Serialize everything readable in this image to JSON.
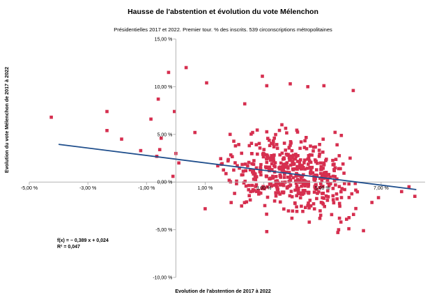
{
  "chart_data": {
    "type": "scatter",
    "title": "Hausse de l'abstention et évolution du vote Mélenchon",
    "subtitle": "Présidentielles 2017 et 2022. Premier tour. % des inscrits. 539 circonscriptions métropolitaines",
    "xlabel": "Evolution de l'abstention de 2017 à 2022",
    "ylabel": "Evolution du vote Mélenchon de 2017 à 2022",
    "xlim": [
      -0.05,
      0.085
    ],
    "ylim": [
      -0.1,
      0.15
    ],
    "x_ticks": [
      -0.05,
      -0.03,
      -0.01,
      0.01,
      0.03,
      0.05,
      0.07
    ],
    "x_tick_labels": [
      "-5,00 %",
      "-3,00 %",
      "-1,00 %",
      "1,00 %",
      "3,00 %",
      "5,00 %",
      "7,00 %"
    ],
    "y_ticks": [
      -0.1,
      -0.05,
      0.0,
      0.05,
      0.1,
      0.15
    ],
    "y_tick_labels": [
      "-10,00 %",
      "-5,00 %",
      "0,00 %",
      "5,00 %",
      "10,00 %",
      "15,00 %"
    ],
    "trendline": {
      "slope": -0.389,
      "intercept": 0.024,
      "x_range": [
        -0.04,
        0.082
      ],
      "color": "#1f4e8c"
    },
    "equation_label": "f(x) = − 0,389 x + 0,024",
    "r2_label": "R² = 0,047",
    "point_color": "#d62f4f",
    "n_points": 539
  }
}
